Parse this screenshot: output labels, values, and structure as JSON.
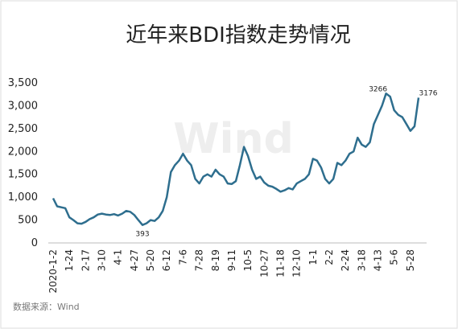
{
  "chart_data": {
    "type": "line",
    "title": "近年来BDI指数走势情况",
    "source": "数据来源：Wind",
    "watermark": "Wind",
    "categories": [
      "2020-1-2",
      null,
      null,
      null,
      "1-24",
      null,
      null,
      null,
      "2-17",
      null,
      null,
      null,
      "3-10",
      null,
      null,
      null,
      "4-1",
      null,
      null,
      null,
      "4-27",
      null,
      null,
      null,
      "5-20",
      null,
      null,
      null,
      "6-12",
      null,
      null,
      null,
      "7-6",
      null,
      null,
      null,
      "7-28",
      null,
      null,
      null,
      "8-19",
      null,
      null,
      null,
      "9-11",
      null,
      null,
      null,
      "10-5",
      null,
      null,
      null,
      "10-27",
      null,
      null,
      null,
      "11-18",
      null,
      null,
      null,
      "12-10",
      null,
      null,
      null,
      "1-1",
      null,
      null,
      null,
      "2-2",
      null,
      null,
      null,
      "2-24",
      null,
      null,
      null,
      "3-18",
      null,
      null,
      null,
      "4-13",
      null,
      null,
      null,
      "5-6",
      null,
      null,
      null,
      "5-28",
      null,
      null
    ],
    "series": [
      {
        "name": "BDI",
        "color": "#2e6e8e",
        "values": [
          976,
          800,
          780,
          760,
          560,
          500,
          430,
          420,
          460,
          520,
          560,
          620,
          640,
          620,
          610,
          630,
          600,
          640,
          700,
          680,
          610,
          500,
          393,
          430,
          500,
          480,
          560,
          700,
          1000,
          1550,
          1700,
          1800,
          1950,
          1800,
          1700,
          1400,
          1300,
          1450,
          1500,
          1450,
          1600,
          1500,
          1450,
          1300,
          1290,
          1350,
          1700,
          2100,
          1900,
          1600,
          1400,
          1450,
          1320,
          1250,
          1230,
          1180,
          1120,
          1150,
          1200,
          1170,
          1300,
          1350,
          1400,
          1500,
          1840,
          1800,
          1650,
          1400,
          1300,
          1400,
          1750,
          1700,
          1800,
          1950,
          2000,
          2300,
          2150,
          2100,
          2200,
          2600,
          2800,
          3000,
          3266,
          3200,
          2900,
          2800,
          2750,
          2600,
          2450,
          2550,
          3176
        ],
        "value_labels": [
          null,
          null,
          null,
          null,
          null,
          null,
          null,
          null,
          null,
          null,
          null,
          null,
          null,
          null,
          null,
          null,
          null,
          null,
          null,
          null,
          null,
          null,
          "393",
          null,
          null,
          null,
          null,
          null,
          null,
          null,
          null,
          null,
          null,
          null,
          null,
          null,
          null,
          null,
          null,
          null,
          null,
          null,
          null,
          null,
          null,
          null,
          null,
          null,
          null,
          null,
          null,
          null,
          null,
          null,
          null,
          null,
          null,
          null,
          null,
          null,
          null,
          null,
          null,
          null,
          null,
          null,
          null,
          null,
          null,
          null,
          null,
          null,
          null,
          null,
          null,
          null,
          null,
          null,
          null,
          null,
          null,
          null,
          "3266",
          null,
          null,
          null,
          null,
          null,
          null,
          null,
          "3176"
        ]
      }
    ],
    "ylim": [
      0,
      3500
    ],
    "yticks": [
      0,
      500,
      {
        "value": 1000,
        "label": "1,000"
      },
      {
        "value": 1500,
        "label": "1,500"
      },
      {
        "value": 2000,
        "label": "2,000"
      },
      {
        "value": 2500,
        "label": "2,500"
      },
      {
        "value": 3000,
        "label": "3,000"
      },
      {
        "value": 3500,
        "label": "3,500"
      }
    ],
    "grid": false
  }
}
